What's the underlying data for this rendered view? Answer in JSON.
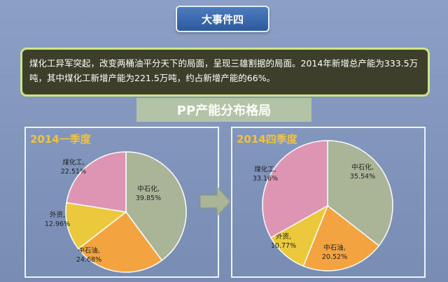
{
  "title": "大事件四",
  "summary": "煤化工异军突起，改变两桶油平分天下的局面，呈现三雄割据的局面。2014年新增总产能为333.5万吨，其中煤化工新增产能为221.5万吨，约占新增产能的66%。",
  "subtitle": "PP产能分布格局",
  "colors": {
    "中石化": "#a9b596",
    "中石油": "#f3a340",
    "外资": "#ebc93a",
    "煤化工": "#dd95b3",
    "title_text": "#f2c23a"
  },
  "chart_data": [
    {
      "type": "pie",
      "title": "2014一季度",
      "slices": [
        {
          "label": "中石化",
          "value": 39.85,
          "display": "39.85%"
        },
        {
          "label": "中石油",
          "value": 24.68,
          "display": "24.68%"
        },
        {
          "label": "外资",
          "value": 12.96,
          "display": "12.96%"
        },
        {
          "label": "煤化工",
          "value": 22.51,
          "display": "22.51%"
        }
      ]
    },
    {
      "type": "pie",
      "title": "2014四季度",
      "slices": [
        {
          "label": "中石化",
          "value": 35.54,
          "display": "35.54%"
        },
        {
          "label": "中石油",
          "value": 20.52,
          "display": "20.52%"
        },
        {
          "label": "外资",
          "value": 10.77,
          "display": "10.77%"
        },
        {
          "label": "煤化工",
          "value": 33.16,
          "display": "33.16%"
        }
      ]
    }
  ]
}
